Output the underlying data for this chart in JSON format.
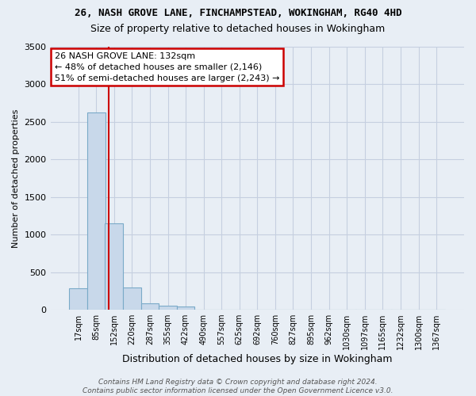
{
  "title1": "26, NASH GROVE LANE, FINCHAMPSTEAD, WOKINGHAM, RG40 4HD",
  "title2": "Size of property relative to detached houses in Wokingham",
  "xlabel": "Distribution of detached houses by size in Wokingham",
  "ylabel": "Number of detached properties",
  "bar_labels": [
    "17sqm",
    "85sqm",
    "152sqm",
    "220sqm",
    "287sqm",
    "355sqm",
    "422sqm",
    "490sqm",
    "557sqm",
    "625sqm",
    "692sqm",
    "760sqm",
    "827sqm",
    "895sqm",
    "962sqm",
    "1030sqm",
    "1097sqm",
    "1165sqm",
    "1232sqm",
    "1300sqm",
    "1367sqm"
  ],
  "bar_values": [
    290,
    2630,
    1150,
    300,
    85,
    55,
    40,
    0,
    0,
    0,
    0,
    0,
    0,
    0,
    0,
    0,
    0,
    0,
    0,
    0,
    0
  ],
  "bar_color": "#c8d8ea",
  "bar_edge_color": "#7aaac8",
  "grid_color": "#c5cfe0",
  "bg_color": "#e8eef5",
  "vline_color": "#cc0000",
  "annotation_text": "26 NASH GROVE LANE: 132sqm\n← 48% of detached houses are smaller (2,146)\n51% of semi-detached houses are larger (2,243) →",
  "annotation_box_color": "#ffffff",
  "annotation_box_edge": "#cc0000",
  "ylim": [
    0,
    3500
  ],
  "yticks": [
    0,
    500,
    1000,
    1500,
    2000,
    2500,
    3000,
    3500
  ],
  "footer": "Contains HM Land Registry data © Crown copyright and database right 2024.\nContains public sector information licensed under the Open Government Licence v3.0.",
  "property_size": 132,
  "title1_fontsize": 9,
  "title2_fontsize": 9
}
